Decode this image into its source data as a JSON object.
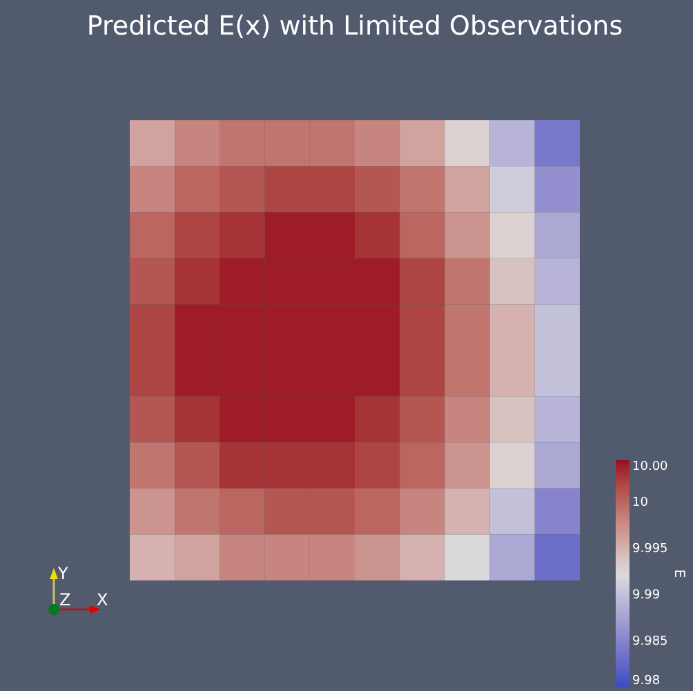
{
  "chart_data": {
    "type": "heatmap",
    "title": "Predicted E(x) with Limited Observations",
    "clabel": "E",
    "tick_labels": false,
    "categories": [
      null,
      null,
      null,
      null,
      null,
      null,
      null,
      null,
      null,
      null
    ],
    "y_categories": [
      null,
      null,
      null,
      null,
      null,
      null,
      null,
      null,
      null,
      null
    ],
    "cells": [
      [
        9.996,
        9.998,
        9.999,
        9.999,
        9.999,
        9.998,
        9.996,
        9.993,
        9.989,
        9.984
      ],
      [
        9.998,
        10,
        10.001,
        10.002,
        10.002,
        10.001,
        9.999,
        9.996,
        9.991,
        9.986
      ],
      [
        10,
        10.002,
        10.003,
        10.004,
        10.004,
        10.003,
        10,
        9.997,
        9.993,
        9.988
      ],
      [
        10.001,
        10.003,
        10.004,
        10.004,
        10.004,
        10.004,
        10.002,
        9.999,
        9.994,
        9.989
      ],
      [
        10.002,
        10.004,
        10.004,
        10.004,
        10.004,
        10.004,
        10.002,
        9.999,
        9.995,
        9.99
      ],
      [
        10.002,
        10.004,
        10.004,
        10.004,
        10.004,
        10.004,
        10.002,
        9.999,
        9.995,
        9.99
      ],
      [
        10.001,
        10.003,
        10.004,
        10.004,
        10.004,
        10.003,
        10.001,
        9.998,
        9.994,
        9.989
      ],
      [
        9.999,
        10.001,
        10.003,
        10.003,
        10.003,
        10.002,
        10,
        9.997,
        9.993,
        9.988
      ],
      [
        9.997,
        9.999,
        10,
        10.001,
        10.001,
        10,
        9.998,
        9.995,
        9.99,
        9.985
      ],
      [
        9.995,
        9.996,
        9.998,
        9.998,
        9.998,
        9.997,
        9.995,
        9.992,
        9.988,
        9.983
      ]
    ],
    "clim": [
      9.98,
      10.0045
    ],
    "cticks": [
      9.98,
      9.985,
      9.99,
      9.995,
      {
        "value": 10,
        "label": "10"
      },
      {
        "value": 10.0045,
        "label": "10.00"
      }
    ],
    "annotations": [
      "Y",
      "Z",
      "X"
    ]
  }
}
